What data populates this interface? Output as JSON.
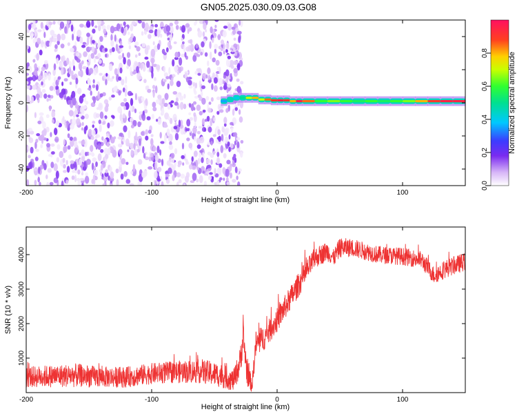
{
  "title": "GN05.2025.030.09.03.G08",
  "chart_data": [
    {
      "type": "heatmap",
      "xlabel": "Height of straight line (km)",
      "ylabel": "Frequency (Hz)",
      "xlim": [
        -200,
        150
      ],
      "ylim": [
        -50,
        50
      ],
      "xticks": [
        -200,
        -100,
        0,
        100
      ],
      "yticks": [
        -40,
        -20,
        0,
        20,
        40
      ],
      "colorbar": {
        "label": "Normalized spectral amplitude",
        "range": [
          0,
          1
        ],
        "ticks": [
          "0.0",
          "0.2",
          "0.4",
          "0.6",
          "0.8"
        ]
      },
      "noise_region": {
        "x": [
          -200,
          -28
        ],
        "amplitude_range": [
          0.02,
          0.18
        ]
      },
      "signal_track": [
        {
          "x": -45,
          "freq": 1,
          "amp": 0.35
        },
        {
          "x": -40,
          "freq": 2,
          "amp": 0.45
        },
        {
          "x": -35,
          "freq": 3,
          "amp": 0.4
        },
        {
          "x": -30,
          "freq": 3,
          "amp": 0.5
        },
        {
          "x": -25,
          "freq": 3,
          "amp": 0.7
        },
        {
          "x": -20,
          "freq": 3,
          "amp": 0.8
        },
        {
          "x": -15,
          "freq": 2,
          "amp": 0.7
        },
        {
          "x": -10,
          "freq": 2,
          "amp": 0.85
        },
        {
          "x": -5,
          "freq": 1.5,
          "amp": 0.9
        },
        {
          "x": 0,
          "freq": 1.5,
          "amp": 0.95
        },
        {
          "x": 5,
          "freq": 1.5,
          "amp": 0.9
        },
        {
          "x": 10,
          "freq": 1,
          "amp": 0.8
        },
        {
          "x": 15,
          "freq": 1,
          "amp": 0.95
        },
        {
          "x": 20,
          "freq": 1,
          "amp": 0.85
        },
        {
          "x": 30,
          "freq": 1,
          "amp": 0.6
        },
        {
          "x": 40,
          "freq": 1,
          "amp": 0.65
        },
        {
          "x": 50,
          "freq": 1,
          "amp": 0.6
        },
        {
          "x": 60,
          "freq": 1,
          "amp": 0.55
        },
        {
          "x": 70,
          "freq": 1,
          "amp": 0.6
        },
        {
          "x": 80,
          "freq": 1,
          "amp": 0.55
        },
        {
          "x": 90,
          "freq": 1,
          "amp": 0.6
        },
        {
          "x": 100,
          "freq": 1,
          "amp": 0.65
        },
        {
          "x": 110,
          "freq": 1,
          "amp": 0.8
        },
        {
          "x": 120,
          "freq": 1,
          "amp": 0.9
        },
        {
          "x": 130,
          "freq": 1,
          "amp": 0.95
        },
        {
          "x": 140,
          "freq": 1,
          "amp": 0.95
        },
        {
          "x": 150,
          "freq": 1,
          "amp": 0.9
        }
      ]
    },
    {
      "type": "line",
      "xlabel": "Height of straight line (km)",
      "ylabel": "SNR (10 * v/v)",
      "xlim": [
        -200,
        150
      ],
      "ylim": [
        0,
        4800
      ],
      "xticks": [
        -200,
        -100,
        0,
        100
      ],
      "yticks": [
        1000,
        2000,
        3000,
        4000
      ],
      "color": "#ee3333",
      "envelope": [
        {
          "x": -200,
          "y": 450,
          "spread": 300
        },
        {
          "x": -180,
          "y": 480,
          "spread": 320
        },
        {
          "x": -160,
          "y": 500,
          "spread": 340
        },
        {
          "x": -140,
          "y": 450,
          "spread": 300
        },
        {
          "x": -120,
          "y": 450,
          "spread": 300
        },
        {
          "x": -100,
          "y": 550,
          "spread": 300
        },
        {
          "x": -80,
          "y": 600,
          "spread": 320
        },
        {
          "x": -60,
          "y": 620,
          "spread": 350
        },
        {
          "x": -45,
          "y": 500,
          "spread": 350
        },
        {
          "x": -35,
          "y": 350,
          "spread": 300
        },
        {
          "x": -30,
          "y": 800,
          "spread": 400
        },
        {
          "x": -27,
          "y": 1600,
          "spread": 500
        },
        {
          "x": -24,
          "y": 600,
          "spread": 400
        },
        {
          "x": -20,
          "y": 200,
          "spread": 200
        },
        {
          "x": -17,
          "y": 1400,
          "spread": 400
        },
        {
          "x": -10,
          "y": 1600,
          "spread": 350
        },
        {
          "x": 0,
          "y": 2100,
          "spread": 350
        },
        {
          "x": 10,
          "y": 2700,
          "spread": 350
        },
        {
          "x": 20,
          "y": 3300,
          "spread": 350
        },
        {
          "x": 30,
          "y": 3900,
          "spread": 300
        },
        {
          "x": 40,
          "y": 4100,
          "spread": 280
        },
        {
          "x": 45,
          "y": 3900,
          "spread": 250
        },
        {
          "x": 50,
          "y": 4200,
          "spread": 280
        },
        {
          "x": 60,
          "y": 4200,
          "spread": 260
        },
        {
          "x": 80,
          "y": 4000,
          "spread": 250
        },
        {
          "x": 100,
          "y": 3950,
          "spread": 250
        },
        {
          "x": 115,
          "y": 3850,
          "spread": 250
        },
        {
          "x": 125,
          "y": 3400,
          "spread": 250
        },
        {
          "x": 135,
          "y": 3600,
          "spread": 260
        },
        {
          "x": 150,
          "y": 3800,
          "spread": 260
        }
      ]
    }
  ]
}
